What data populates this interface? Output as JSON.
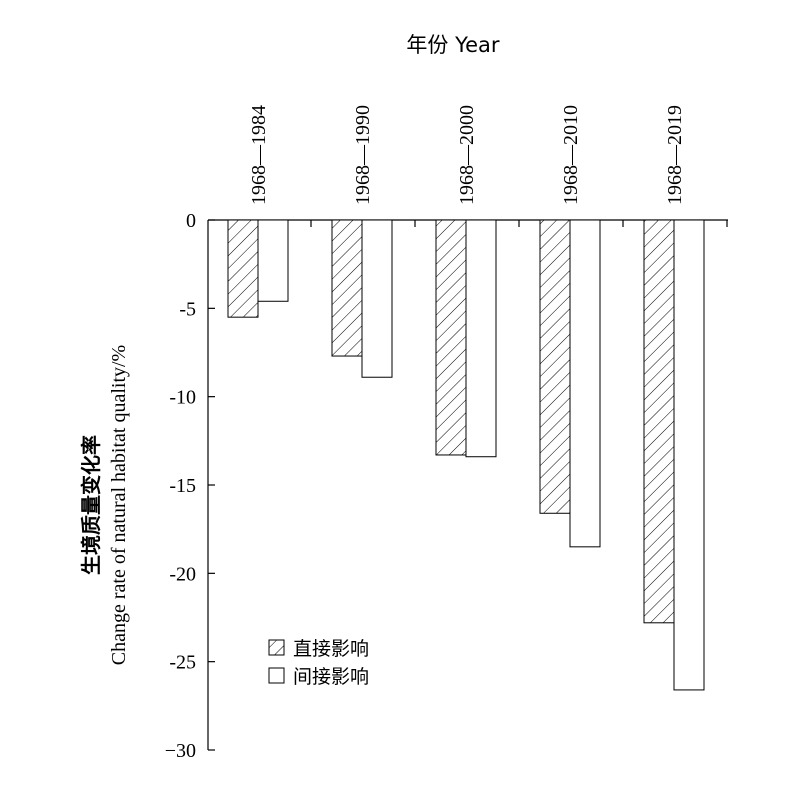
{
  "chart_data": {
    "type": "bar",
    "xlabel": "年份 Year",
    "ylabel_cn": "生境质量变化率",
    "ylabel_en": "Change rate of natural habitat quality/%",
    "categories": [
      "1968—1984",
      "1968—1990",
      "1968—2000",
      "1968—2010",
      "1968—2019"
    ],
    "series": [
      {
        "name": "直接影响",
        "pattern": "hatched",
        "values": [
          -5.5,
          -7.7,
          -13.3,
          -16.6,
          -22.8
        ]
      },
      {
        "name": "间接影响",
        "pattern": "open",
        "values": [
          -4.6,
          -8.9,
          -13.4,
          -18.5,
          -26.6
        ]
      }
    ],
    "ylim": [
      -30,
      0
    ],
    "yticks": [
      0,
      -5,
      -10,
      -15,
      -20,
      -25,
      -30
    ],
    "ytick_labels": [
      "0",
      "-5",
      "-10",
      "-15",
      "-20",
      "-25",
      "−30"
    ],
    "legend_position": "bottom-left",
    "grid": false,
    "colors": {
      "bar_stroke": "#000000",
      "bar_fill": "#ffffff",
      "hatch": "#000000"
    }
  }
}
